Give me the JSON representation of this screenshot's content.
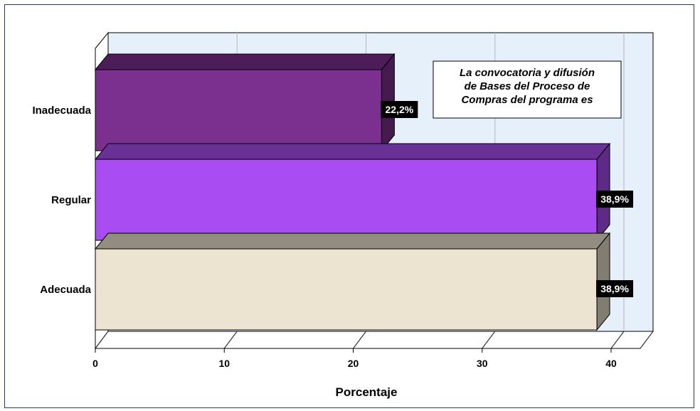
{
  "chart_data": {
    "type": "bar",
    "orientation": "horizontal",
    "categories": [
      "Inadecuada",
      "Regular",
      "Adecuada"
    ],
    "values": [
      22.2,
      38.9,
      38.9
    ],
    "value_labels": [
      "22,2%",
      "38,9%",
      "38,9%"
    ],
    "colors": [
      "#7b2f8f",
      "#a94df2",
      "#ece4d0"
    ],
    "xlabel": "Porcentaje",
    "ylabel": "",
    "xlim": [
      0,
      40
    ],
    "x_ticks": [
      "0",
      "10",
      "20",
      "30",
      "40"
    ],
    "annotation_lines": [
      "La convocatoria y difusión",
      "de Bases del Proceso de",
      "Compras del programa es"
    ],
    "grid": "vertical",
    "style": "3d"
  }
}
